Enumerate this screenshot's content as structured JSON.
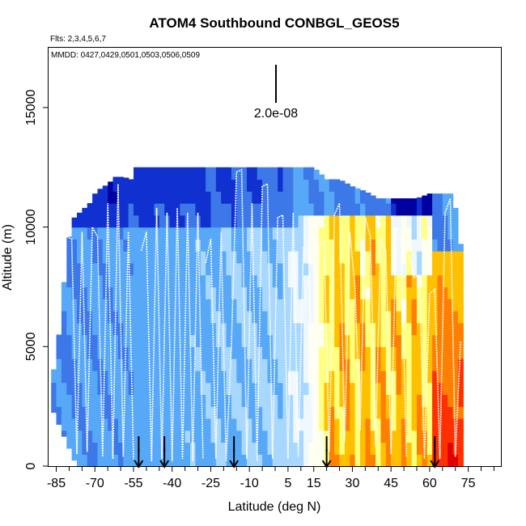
{
  "chart_data": {
    "type": "heatmap",
    "title": "ATOM4 Southbound CONBGL_GEOS5",
    "flights_label": "Flts: 2,3,4,5,6,7",
    "dates_label": "MMDD: 0427,0429,0501,0503,0506,0509",
    "scale_label": "2.0e-08",
    "xlabel": "Latitude (deg N)",
    "ylabel": "Altitude (m)",
    "xlim": [
      -88,
      88
    ],
    "ylim": [
      0,
      17500
    ],
    "x_ticks": [
      -85,
      -70,
      -55,
      -40,
      -25,
      -10,
      5,
      15,
      30,
      45,
      60,
      75
    ],
    "x_minor_ticks": [
      -80,
      -75,
      -65,
      -60,
      -50,
      -45,
      -35,
      -30,
      -20,
      -15,
      -5,
      0,
      10,
      20,
      25,
      35,
      40,
      50,
      55,
      65,
      70,
      80,
      85
    ],
    "y_ticks": [
      0,
      5000,
      10000,
      15000
    ],
    "arrow_latitudes": [
      -53,
      -43,
      -16,
      20,
      62
    ],
    "color_scale": [
      "#0000a0",
      "#1030d0",
      "#3c78e8",
      "#58a8f8",
      "#a8d8ff",
      "#f0f8ff",
      "#fffff0",
      "#ffff80",
      "#ffc000",
      "#ff8000",
      "#ff3000",
      "#e00000"
    ],
    "column_tops_m": [
      [
        -87,
        3100
      ],
      [
        -85,
        5000
      ],
      [
        -83,
        6000
      ],
      [
        -82,
        7700
      ],
      [
        -80,
        9600
      ],
      [
        -78,
        10400
      ],
      [
        -76,
        10600
      ],
      [
        -74,
        10800
      ],
      [
        -72,
        11000
      ],
      [
        -70,
        11400
      ],
      [
        -68,
        11600
      ],
      [
        -65,
        11800
      ],
      [
        -62,
        12100
      ],
      [
        -59,
        12100
      ],
      [
        -56,
        12000
      ],
      [
        -54,
        12500
      ],
      [
        -50,
        12500
      ],
      [
        -45,
        12500
      ],
      [
        -40,
        12500
      ],
      [
        -35,
        12500
      ],
      [
        -30,
        12500
      ],
      [
        -25,
        12500
      ],
      [
        -20,
        12500
      ],
      [
        -15,
        12500
      ],
      [
        -10,
        12500
      ],
      [
        -5,
        12500
      ],
      [
        0,
        12500
      ],
      [
        5,
        12500
      ],
      [
        10,
        12500
      ],
      [
        15,
        12500
      ],
      [
        20,
        12000
      ],
      [
        25,
        12000
      ],
      [
        30,
        11700
      ],
      [
        35,
        11500
      ],
      [
        40,
        11200
      ],
      [
        45,
        11200
      ],
      [
        50,
        11200
      ],
      [
        55,
        11200
      ],
      [
        60,
        11400
      ],
      [
        65,
        11400
      ],
      [
        68,
        11400
      ],
      [
        70,
        10800
      ],
      [
        72,
        9300
      ]
    ],
    "column_bottoms_m": [
      [
        -87,
        2500
      ],
      [
        -85,
        2000
      ],
      [
        -83,
        1500
      ],
      [
        -81,
        1000
      ],
      [
        -79,
        500
      ],
      [
        -77,
        0
      ]
    ],
    "flight_profiles": [
      {
        "name": "flight-2",
        "points": [
          [
            -81,
            9600
          ],
          [
            -79,
            9500
          ],
          [
            -77,
            500
          ],
          [
            -75,
            9800
          ],
          [
            -73,
            600
          ],
          [
            -71,
            10000
          ],
          [
            -69,
            9600
          ],
          [
            -67,
            400
          ],
          [
            -65,
            11000
          ],
          [
            -63,
            300
          ],
          [
            -61,
            11800
          ],
          [
            -59,
            400
          ],
          [
            -57,
            9800
          ],
          [
            -55,
            300
          ]
        ]
      },
      {
        "name": "flight-3",
        "points": [
          [
            -52,
            9000
          ],
          [
            -50,
            9800
          ],
          [
            -48,
            200
          ],
          [
            -46,
            10800
          ],
          [
            -44,
            300
          ],
          [
            -42,
            10600
          ],
          [
            -40,
            200
          ],
          [
            -38,
            10800
          ],
          [
            -36,
            300
          ],
          [
            -34,
            10600
          ],
          [
            -32,
            200
          ],
          [
            -30,
            10600
          ],
          [
            -28,
            300
          ]
        ]
      },
      {
        "name": "flight-4",
        "points": [
          [
            -27,
            8500
          ],
          [
            -25,
            9500
          ],
          [
            -23,
            300
          ],
          [
            -21,
            9800
          ],
          [
            -19,
            200
          ],
          [
            -17,
            5000
          ],
          [
            -15,
            12300
          ],
          [
            -13,
            12400
          ],
          [
            -11,
            300
          ],
          [
            -9,
            11000
          ],
          [
            -7,
            200
          ],
          [
            -5,
            11700
          ],
          [
            -3,
            11800
          ],
          [
            -1,
            300
          ],
          [
            1,
            10400
          ],
          [
            3,
            10500
          ],
          [
            5,
            300
          ],
          [
            7,
            10600
          ],
          [
            9,
            400
          ],
          [
            11,
            9200
          ]
        ]
      },
      {
        "name": "flight-5",
        "points": [
          [
            13,
            9100
          ],
          [
            15,
            300
          ],
          [
            17,
            9200
          ],
          [
            19,
            9400
          ],
          [
            21,
            600
          ],
          [
            23,
            10500
          ],
          [
            25,
            11000
          ],
          [
            27,
            1000
          ],
          [
            29,
            9800
          ],
          [
            31,
            7500
          ],
          [
            33,
            1500
          ],
          [
            35,
            10400
          ],
          [
            37,
            9600
          ],
          [
            39,
            800
          ],
          [
            41,
            9500
          ],
          [
            43,
            9000
          ],
          [
            45,
            500
          ],
          [
            47,
            10000
          ],
          [
            49,
            9400
          ],
          [
            51,
            400
          ]
        ]
      },
      {
        "name": "flight-6",
        "points": [
          [
            52,
            8800
          ],
          [
            54,
            7900
          ],
          [
            56,
            8000
          ],
          [
            58,
            300
          ],
          [
            60,
            7200
          ],
          [
            62,
            7400
          ],
          [
            64,
            300
          ],
          [
            66,
            10600
          ],
          [
            68,
            11200
          ],
          [
            70,
            400
          ],
          [
            72,
            5200
          ]
        ]
      }
    ]
  }
}
